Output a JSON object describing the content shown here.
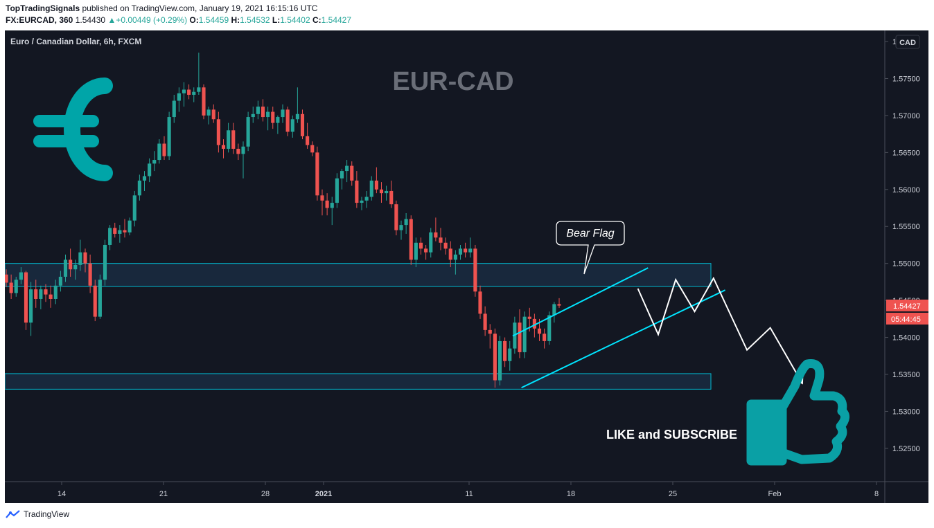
{
  "header": {
    "publisher": "TopTradingSignals",
    "published_text": "published on TradingView.com, January 19, 2021 16:15:16 UTC",
    "symbol": "FX:EURCAD, 360",
    "last": "1.54430",
    "change": "+0.00449 (+0.29%)",
    "o_label": "O:",
    "o_value": "1.54459",
    "h_label": "H:",
    "h_value": "1.54532",
    "l_label": "L:",
    "l_value": "1.54402",
    "c_label": "C:",
    "c_value": "1.54427"
  },
  "footer": {
    "brand": "TradingView"
  },
  "colors": {
    "background": "#131722",
    "up": "#26a69a",
    "down": "#ef5350",
    "zone_border": "#00bcd4",
    "channel": "#00e5ff",
    "projection": "#ffffff",
    "euro_icon": "#00a5a8",
    "thumb_icon": "#0aa0a5"
  },
  "chart_data": {
    "type": "candlestick",
    "title": "EUR-CAD",
    "instrument_label": "Euro / Canadian Dollar, 6h, FXCM",
    "currency_badge": "CAD",
    "y_ticks": [
      "1.58000",
      "1.57500",
      "1.57000",
      "1.56500",
      "1.56000",
      "1.55500",
      "1.55000",
      "1.54500",
      "1.54000",
      "1.53500",
      "1.53000",
      "1.52500"
    ],
    "ylim": [
      1.5205,
      1.5815
    ],
    "x_ticks": [
      {
        "label": "14",
        "day": 14
      },
      {
        "label": "21",
        "day": 21
      },
      {
        "label": "28",
        "day": 28
      },
      {
        "label": "2021",
        "day": 32
      },
      {
        "label": "11",
        "day": 42
      },
      {
        "label": "18",
        "day": 49
      },
      {
        "label": "25",
        "day": 56
      },
      {
        "label": "Feb",
        "day": 63
      },
      {
        "label": "8",
        "day": 70
      }
    ],
    "last_price": "1.54427",
    "countdown": "05:44:45",
    "candles": [
      [
        1.5485,
        1.5492,
        1.5468,
        1.5474
      ],
      [
        1.5474,
        1.5485,
        1.5452,
        1.546
      ],
      [
        1.546,
        1.5482,
        1.5455,
        1.5478
      ],
      [
        1.5478,
        1.5495,
        1.5472,
        1.5488
      ],
      [
        1.5488,
        1.549,
        1.541,
        1.542
      ],
      [
        1.542,
        1.5475,
        1.5402,
        1.5465
      ],
      [
        1.5465,
        1.5478,
        1.544,
        1.5452
      ],
      [
        1.5452,
        1.547,
        1.5438,
        1.5465
      ],
      [
        1.5465,
        1.5472,
        1.5448,
        1.5458
      ],
      [
        1.5458,
        1.547,
        1.544,
        1.5452
      ],
      [
        1.5452,
        1.5478,
        1.5445,
        1.547
      ],
      [
        1.547,
        1.549,
        1.5462,
        1.5482
      ],
      [
        1.5482,
        1.5512,
        1.5475,
        1.5505
      ],
      [
        1.5505,
        1.552,
        1.5482,
        1.5492
      ],
      [
        1.5492,
        1.5505,
        1.5478,
        1.5498
      ],
      [
        1.5498,
        1.5532,
        1.549,
        1.5515
      ],
      [
        1.5515,
        1.552,
        1.5488,
        1.55
      ],
      [
        1.55,
        1.5512,
        1.546,
        1.547
      ],
      [
        1.547,
        1.5478,
        1.5422,
        1.5428
      ],
      [
        1.5428,
        1.5485,
        1.5425,
        1.5478
      ],
      [
        1.5478,
        1.5532,
        1.547,
        1.5525
      ],
      [
        1.5525,
        1.5552,
        1.5518,
        1.5548
      ],
      [
        1.5548,
        1.5555,
        1.5535,
        1.554
      ],
      [
        1.554,
        1.5552,
        1.5528,
        1.5545
      ],
      [
        1.5545,
        1.556,
        1.5535,
        1.5542
      ],
      [
        1.5542,
        1.5562,
        1.5538,
        1.5558
      ],
      [
        1.5558,
        1.5598,
        1.555,
        1.5592
      ],
      [
        1.5592,
        1.562,
        1.5585,
        1.5612
      ],
      [
        1.5612,
        1.5625,
        1.5598,
        1.5618
      ],
      [
        1.5618,
        1.5642,
        1.561,
        1.5635
      ],
      [
        1.5635,
        1.5652,
        1.5625,
        1.564
      ],
      [
        1.564,
        1.5668,
        1.5635,
        1.5662
      ],
      [
        1.5662,
        1.5672,
        1.564,
        1.5645
      ],
      [
        1.5645,
        1.5705,
        1.564,
        1.5698
      ],
      [
        1.5698,
        1.5728,
        1.569,
        1.572
      ],
      [
        1.572,
        1.5738,
        1.5705,
        1.573
      ],
      [
        1.573,
        1.5745,
        1.5712,
        1.5735
      ],
      [
        1.5735,
        1.5742,
        1.5722,
        1.5728
      ],
      [
        1.5728,
        1.5738,
        1.5718,
        1.5732
      ],
      [
        1.5732,
        1.5785,
        1.5728,
        1.5738
      ],
      [
        1.5738,
        1.5742,
        1.5695,
        1.57
      ],
      [
        1.57,
        1.5712,
        1.5688,
        1.5708
      ],
      [
        1.5708,
        1.5715,
        1.569,
        1.5695
      ],
      [
        1.5695,
        1.5705,
        1.565,
        1.566
      ],
      [
        1.566,
        1.5668,
        1.5642,
        1.5655
      ],
      [
        1.5655,
        1.569,
        1.565,
        1.568
      ],
      [
        1.568,
        1.569,
        1.5648,
        1.5655
      ],
      [
        1.5655,
        1.5662,
        1.564,
        1.5648
      ],
      [
        1.5648,
        1.5665,
        1.5615,
        1.5658
      ],
      [
        1.5658,
        1.5705,
        1.5652,
        1.5698
      ],
      [
        1.5698,
        1.5712,
        1.569,
        1.5702
      ],
      [
        1.5702,
        1.572,
        1.5695,
        1.5712
      ],
      [
        1.5712,
        1.5722,
        1.5692,
        1.5698
      ],
      [
        1.5698,
        1.5712,
        1.568,
        1.5705
      ],
      [
        1.5705,
        1.5712,
        1.5682,
        1.569
      ],
      [
        1.569,
        1.57,
        1.5675,
        1.5698
      ],
      [
        1.5698,
        1.5715,
        1.569,
        1.5708
      ],
      [
        1.5708,
        1.5712,
        1.5672,
        1.5678
      ],
      [
        1.5678,
        1.57,
        1.567,
        1.5695
      ],
      [
        1.5695,
        1.5738,
        1.569,
        1.5702
      ],
      [
        1.5702,
        1.5708,
        1.5668,
        1.5672
      ],
      [
        1.5672,
        1.569,
        1.5655,
        1.566
      ],
      [
        1.566,
        1.5665,
        1.5645,
        1.565
      ],
      [
        1.565,
        1.5658,
        1.5585,
        1.5592
      ],
      [
        1.5592,
        1.56,
        1.5565,
        1.5585
      ],
      [
        1.5585,
        1.5595,
        1.5565,
        1.5575
      ],
      [
        1.5575,
        1.559,
        1.5552,
        1.5582
      ],
      [
        1.5582,
        1.5622,
        1.5575,
        1.5615
      ],
      [
        1.5615,
        1.5628,
        1.56,
        1.5625
      ],
      [
        1.5625,
        1.564,
        1.561,
        1.5632
      ],
      [
        1.5632,
        1.5638,
        1.5605,
        1.5612
      ],
      [
        1.5612,
        1.5625,
        1.5575,
        1.5582
      ],
      [
        1.5582,
        1.559,
        1.5572,
        1.5585
      ],
      [
        1.5585,
        1.5598,
        1.5575,
        1.559
      ],
      [
        1.559,
        1.5618,
        1.5585,
        1.5612
      ],
      [
        1.5612,
        1.563,
        1.5595,
        1.56
      ],
      [
        1.56,
        1.561,
        1.5582,
        1.5595
      ],
      [
        1.5595,
        1.5605,
        1.5585,
        1.5598
      ],
      [
        1.5598,
        1.5612,
        1.5575,
        1.558
      ],
      [
        1.558,
        1.5585,
        1.5538,
        1.5545
      ],
      [
        1.5545,
        1.5558,
        1.5532,
        1.5552
      ],
      [
        1.5552,
        1.5568,
        1.554,
        1.556
      ],
      [
        1.556,
        1.5565,
        1.5498,
        1.5505
      ],
      [
        1.5505,
        1.5535,
        1.5495,
        1.5528
      ],
      [
        1.5528,
        1.5535,
        1.5512,
        1.552
      ],
      [
        1.552,
        1.5525,
        1.5505,
        1.5515
      ],
      [
        1.5515,
        1.5548,
        1.5508,
        1.5542
      ],
      [
        1.5542,
        1.5562,
        1.553,
        1.5535
      ],
      [
        1.5535,
        1.5548,
        1.5518,
        1.5528
      ],
      [
        1.5528,
        1.5535,
        1.5512,
        1.552
      ],
      [
        1.552,
        1.553,
        1.5495,
        1.5505
      ],
      [
        1.5505,
        1.5518,
        1.5485,
        1.5512
      ],
      [
        1.5512,
        1.5525,
        1.5505,
        1.552
      ],
      [
        1.552,
        1.5528,
        1.5508,
        1.5515
      ],
      [
        1.5515,
        1.5535,
        1.5508,
        1.552
      ],
      [
        1.552,
        1.5525,
        1.5455,
        1.5462
      ],
      [
        1.5462,
        1.547,
        1.5425,
        1.5432
      ],
      [
        1.5432,
        1.5442,
        1.5402,
        1.541
      ],
      [
        1.541,
        1.5418,
        1.5385,
        1.5405
      ],
      [
        1.5405,
        1.5412,
        1.5332,
        1.5342
      ],
      [
        1.5342,
        1.5402,
        1.5335,
        1.5395
      ],
      [
        1.5395,
        1.54,
        1.536,
        1.5368
      ],
      [
        1.5368,
        1.5395,
        1.5355,
        1.5385
      ],
      [
        1.5385,
        1.5428,
        1.5378,
        1.542
      ],
      [
        1.542,
        1.5438,
        1.5372,
        1.538
      ],
      [
        1.538,
        1.5435,
        1.5372,
        1.5428
      ],
      [
        1.5428,
        1.544,
        1.5408,
        1.5425
      ],
      [
        1.5425,
        1.5432,
        1.54,
        1.5412
      ],
      [
        1.5412,
        1.5425,
        1.5395,
        1.5405
      ],
      [
        1.5405,
        1.5412,
        1.5385,
        1.5395
      ],
      [
        1.5395,
        1.5435,
        1.539,
        1.543
      ],
      [
        1.543,
        1.5448,
        1.542,
        1.5445
      ],
      [
        1.5445,
        1.5453,
        1.544,
        1.5443
      ]
    ],
    "annotations": {
      "callout": "Bear Flag",
      "cta": "LIKE and SUBSCRIBE"
    },
    "zones": [
      {
        "top": 1.55,
        "bottom": 1.5469
      },
      {
        "top": 1.5351,
        "bottom": 1.533
      }
    ],
    "channel": {
      "upper": [
        [
          45,
          1.5402
        ],
        [
          54.3,
          1.5494
        ]
      ],
      "lower": [
        [
          45.6,
          1.5332
        ],
        [
          59.6,
          1.5464
        ]
      ]
    },
    "projection": [
      [
        53.6,
        1.5466
      ],
      [
        55.0,
        1.5404
      ],
      [
        56.2,
        1.5478
      ],
      [
        57.5,
        1.5435
      ],
      [
        58.8,
        1.548
      ],
      [
        61.1,
        1.5383
      ],
      [
        62.7,
        1.5413
      ],
      [
        64.9,
        1.5338
      ]
    ]
  }
}
